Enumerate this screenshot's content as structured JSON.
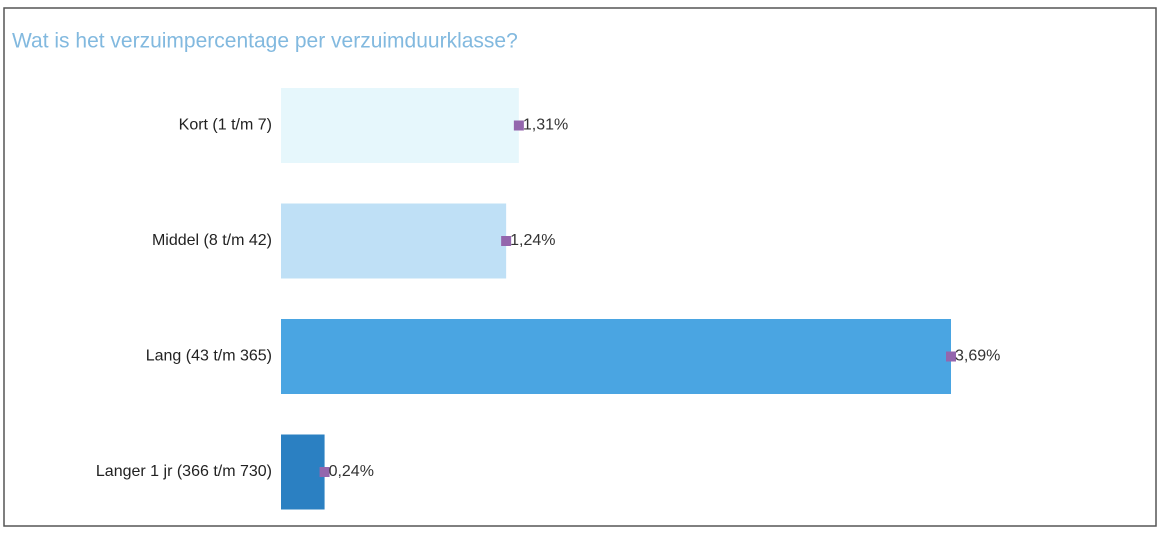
{
  "chart_data": {
    "type": "barh",
    "title": "Wat is het verzuimpercentage per verzuimduurklasse?",
    "categories": [
      "Kort (1 t/m 7)",
      "Middel (8 t/m 42)",
      "Lang (43 t/m 365)",
      "Langer 1 jr (366 t/m 730)"
    ],
    "values": [
      1.31,
      1.24,
      3.69,
      0.24
    ],
    "value_labels": [
      "1,31%",
      "1,24%",
      "3,69%",
      "0,24%"
    ],
    "colors": [
      "#e6f7fc",
      "#bfe0f6",
      "#4aa5e2",
      "#2b80c2"
    ],
    "marker_color": "#9466ad"
  }
}
